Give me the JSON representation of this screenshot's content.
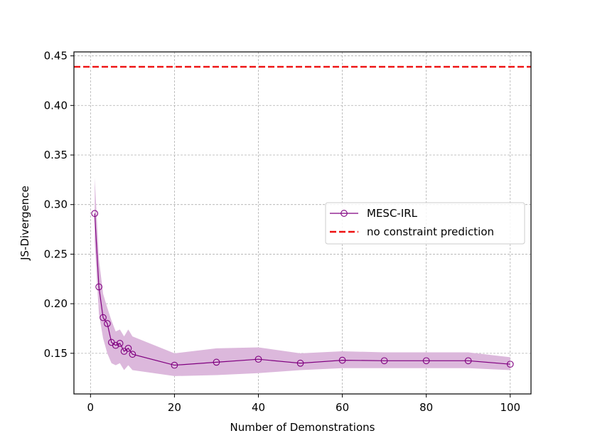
{
  "chart_data": {
    "type": "line",
    "title": "",
    "xlabel": "Number of Demonstrations",
    "ylabel": "JS-Divergence",
    "xlim": [
      -3.95,
      104.95
    ],
    "ylim": [
      0.109,
      0.454
    ],
    "xticks": [
      0,
      20,
      40,
      60,
      80,
      100
    ],
    "yticks": [
      0.15,
      0.2,
      0.25,
      0.3,
      0.35,
      0.4,
      0.45
    ],
    "xtick_labels": [
      "0",
      "20",
      "40",
      "60",
      "80",
      "100"
    ],
    "ytick_labels": [
      "0.15",
      "0.20",
      "0.25",
      "0.30",
      "0.35",
      "0.40",
      "0.45"
    ],
    "grid": true,
    "legend_position": "center-right",
    "series": [
      {
        "name": "MESC-IRL",
        "style": "line-with-open-circle-markers",
        "color": "#800080",
        "x": [
          1,
          2,
          3,
          4,
          5,
          6,
          7,
          8,
          9,
          10,
          20,
          30,
          40,
          50,
          60,
          70,
          80,
          90,
          100
        ],
        "values": [
          0.291,
          0.217,
          0.186,
          0.18,
          0.161,
          0.158,
          0.16,
          0.152,
          0.155,
          0.149,
          0.138,
          0.141,
          0.144,
          0.14,
          0.143,
          0.1425,
          0.1425,
          0.1425,
          0.139
        ],
        "band_lower": [
          0.262,
          0.19,
          0.165,
          0.15,
          0.14,
          0.138,
          0.14,
          0.133,
          0.138,
          0.133,
          0.127,
          0.128,
          0.13,
          0.133,
          0.135,
          0.135,
          0.135,
          0.135,
          0.133
        ],
        "band_upper": [
          0.327,
          0.245,
          0.21,
          0.196,
          0.183,
          0.172,
          0.174,
          0.167,
          0.174,
          0.167,
          0.15,
          0.155,
          0.156,
          0.15,
          0.152,
          0.151,
          0.151,
          0.151,
          0.146
        ],
        "band_color": "#dcb8dc"
      },
      {
        "name": "no constraint prediction",
        "style": "dashed-horizontal-line",
        "color": "#ee1111",
        "y": 0.439
      }
    ]
  }
}
